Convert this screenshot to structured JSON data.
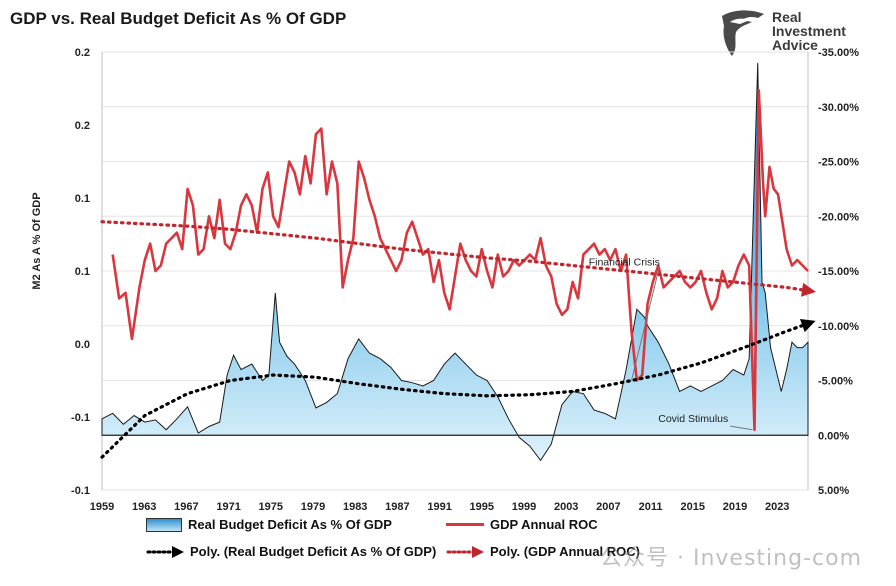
{
  "title": "GDP vs. Real Budget Deficit As % Of GDP",
  "brand": {
    "line1": "Real",
    "line2": "Investment",
    "line3": "Advice",
    "icon": "eagle-head-icon"
  },
  "watermark": "公众号 · Investing-com",
  "chart_data": {
    "type": "area",
    "ylabel": "M2 As A % Of GDP",
    "left_axis_ticks": [
      "0.2",
      "0.2",
      "0.1",
      "0.1",
      "0.0",
      "-0.1",
      "-0.1"
    ],
    "left_axis_values": [
      0.2,
      0.15,
      0.1,
      0.05,
      0.0,
      -0.05,
      -0.1
    ],
    "right_axis_ticks": [
      "-35.00%",
      "-30.00%",
      "-25.00%",
      "-20.00%",
      "-15.00%",
      "-10.00%",
      "-5.00%",
      "0.00%",
      "5.00%"
    ],
    "right_axis_values": [
      -35,
      -30,
      -25,
      -20,
      -15,
      -10,
      -5,
      0,
      5
    ],
    "right_axis_inverted": true,
    "x_ticks": [
      "1959",
      "1963",
      "1967",
      "1971",
      "1975",
      "1979",
      "1983",
      "1987",
      "1991",
      "1995",
      "1999",
      "2003",
      "2007",
      "2011",
      "2015",
      "2019",
      "2023"
    ],
    "xlim": [
      1959,
      2025
    ],
    "legend_position": "bottom",
    "grid": "horizontal",
    "series": [
      {
        "name": "Real Budget Deficit As % Of GDP",
        "kind": "area",
        "axis": "right",
        "color": "#3fa7dd",
        "x": [
          1959,
          1960,
          1961,
          1962,
          1963,
          1964,
          1965,
          1966,
          1967,
          1968,
          1969,
          1970,
          1970.7,
          1971.3,
          1972,
          1973,
          1974,
          1974.6,
          1975.2,
          1975.6,
          1976.3,
          1977,
          1978,
          1979,
          1980,
          1981,
          1982,
          1983,
          1984,
          1985,
          1986,
          1987,
          1988,
          1989,
          1990,
          1991,
          1992,
          1993,
          1994,
          1995,
          1996,
          1997,
          1998,
          1999,
          2000,
          2001,
          2002,
          2003,
          2004,
          2005,
          2006,
          2007,
          2008,
          2009,
          2009.7,
          2010,
          2011,
          2012,
          2013,
          2014,
          2015,
          2016,
          2017,
          2018,
          2019,
          2019.5,
          2020.0,
          2020.3,
          2020.7,
          2021,
          2021.5,
          2022,
          2022.5,
          2023,
          2023.5,
          2024,
          2024.5,
          2025
        ],
        "y": [
          -1.5,
          -2.0,
          -1.0,
          -1.8,
          -1.2,
          -1.4,
          -0.5,
          -1.5,
          -2.6,
          -0.2,
          -0.8,
          -1.2,
          -5.5,
          -7.3,
          -6.0,
          -6.5,
          -5.0,
          -5.5,
          -13.0,
          -8.5,
          -7.2,
          -6.5,
          -5.0,
          -2.5,
          -3.0,
          -3.8,
          -7.0,
          -8.8,
          -7.5,
          -7.0,
          -6.2,
          -5.0,
          -4.8,
          -4.5,
          -5.0,
          -6.5,
          -7.5,
          -6.5,
          -5.5,
          -5.0,
          -3.5,
          -1.5,
          0.2,
          1.0,
          2.3,
          0.8,
          -2.8,
          -4.0,
          -3.8,
          -2.3,
          -2.0,
          -1.5,
          -6.0,
          -11.5,
          -10.8,
          -10.0,
          -8.5,
          -6.5,
          -4.0,
          -4.5,
          -4.0,
          -4.5,
          -5.0,
          -6.0,
          -5.5,
          -7.0,
          -24.0,
          -34.0,
          -14.0,
          -13.0,
          -8.0,
          -6.0,
          -4.0,
          -6.0,
          -8.5,
          -8.0,
          -8.0,
          -8.5
        ]
      },
      {
        "name": "GDP Annual ROC",
        "kind": "line",
        "axis": "right",
        "color": "#d9363e",
        "x": [
          1960,
          1960.6,
          1961.2,
          1961.8,
          1962.5,
          1963,
          1963.5,
          1964,
          1964.5,
          1965,
          1965.5,
          1966,
          1966.5,
          1967,
          1967.5,
          1968,
          1968.5,
          1969,
          1969.5,
          1970,
          1970.5,
          1971,
          1971.5,
          1972,
          1972.5,
          1973,
          1973.5,
          1974,
          1974.5,
          1975,
          1975.5,
          1976,
          1976.5,
          1977,
          1977.5,
          1978,
          1978.5,
          1979,
          1979.5,
          1980,
          1980.5,
          1981,
          1981.5,
          1982,
          1982.5,
          1983,
          1983.5,
          1984,
          1984.5,
          1985,
          1985.5,
          1986,
          1986.5,
          1987,
          1987.5,
          1988,
          1988.5,
          1989,
          1989.5,
          1990,
          1990.5,
          1991,
          1991.5,
          1992,
          1992.5,
          1993,
          1993.5,
          1994,
          1994.5,
          1995,
          1995.5,
          1996,
          1996.5,
          1997,
          1997.5,
          1998,
          1998.5,
          1999,
          1999.5,
          2000,
          2000.5,
          2001,
          2001.5,
          2002,
          2002.5,
          2003,
          2003.5,
          2004,
          2004.5,
          2005,
          2005.5,
          2006,
          2006.5,
          2007,
          2007.5,
          2008,
          2008.5,
          2009,
          2009.5,
          2010,
          2010.5,
          2011,
          2011.5,
          2012,
          2012.5,
          2013,
          2013.5,
          2014,
          2014.5,
          2015,
          2015.5,
          2016,
          2016.5,
          2017,
          2017.5,
          2018,
          2018.5,
          2019,
          2019.5,
          2020,
          2020.4,
          2020.8,
          2021,
          2021.4,
          2021.8,
          2022.2,
          2022.6,
          2023,
          2023.5,
          2024,
          2024.5,
          2025
        ],
        "y": [
          -16.5,
          -12.5,
          -13.0,
          -8.8,
          -13.5,
          -16.0,
          -17.5,
          -15.0,
          -15.5,
          -17.5,
          -18.0,
          -18.5,
          -17.0,
          -22.5,
          -21.0,
          -16.5,
          -17.0,
          -20.0,
          -18.0,
          -21.5,
          -17.5,
          -17.0,
          -18.5,
          -21.0,
          -22.0,
          -21.0,
          -18.5,
          -22.5,
          -24.0,
          -20.0,
          -19.0,
          -22.0,
          -25.0,
          -24.0,
          -22.0,
          -25.5,
          -23.0,
          -27.5,
          -28.0,
          -22.0,
          -25.0,
          -23.0,
          -13.5,
          -16.0,
          -18.0,
          -25.0,
          -23.5,
          -21.5,
          -20.0,
          -18.0,
          -17.0,
          -16.0,
          -15.0,
          -16.0,
          -18.5,
          -19.5,
          -18.0,
          -16.5,
          -17.0,
          -14.0,
          -16.0,
          -13.0,
          -11.5,
          -14.5,
          -17.5,
          -16.0,
          -15.0,
          -14.5,
          -17.0,
          -15.0,
          -13.5,
          -16.5,
          -14.5,
          -15.0,
          -16.0,
          -15.5,
          -16.0,
          -16.5,
          -16.0,
          -18.0,
          -15.5,
          -14.5,
          -12.0,
          -11.0,
          -11.5,
          -14.0,
          -12.5,
          -16.5,
          -17.0,
          -17.5,
          -16.5,
          -17.0,
          -16.0,
          -17.0,
          -15.0,
          -16.5,
          -9.5,
          -5.0,
          -5.5,
          -12.0,
          -14.0,
          -15.5,
          -13.5,
          -14.0,
          -14.5,
          -15.0,
          -14.0,
          -13.5,
          -14.0,
          -15.0,
          -13.0,
          -11.5,
          -12.5,
          -15.0,
          -13.5,
          -14.0,
          -15.5,
          -16.5,
          -15.5,
          -0.5,
          -31.5,
          -23.0,
          -20.0,
          -24.5,
          -22.5,
          -22.0,
          -19.5,
          -17.0,
          -15.5,
          -16.0,
          -15.5,
          -15.0
        ]
      },
      {
        "name": "Poly. (Real Budget Deficit As % Of GDP)",
        "kind": "trend",
        "axis": "right",
        "color": "#000000",
        "x": [
          1959,
          1963,
          1967,
          1971,
          1975,
          1979,
          1983,
          1987,
          1991,
          1995,
          1999,
          2003,
          2007,
          2011,
          2015,
          2019,
          2023,
          2025
        ],
        "y": [
          2.0,
          -1.8,
          -3.8,
          -5.0,
          -5.5,
          -5.3,
          -4.7,
          -4.2,
          -3.8,
          -3.6,
          -3.7,
          -4.0,
          -4.7,
          -5.5,
          -6.6,
          -8.0,
          -9.5,
          -10.2
        ]
      },
      {
        "name": "Poly. (GDP Annual ROC)",
        "kind": "trend",
        "axis": "right",
        "color": "#c0262c",
        "x": [
          1959,
          1963,
          1967,
          1971,
          1975,
          1979,
          1983,
          1987,
          1991,
          1995,
          1999,
          2003,
          2007,
          2011,
          2015,
          2019,
          2023,
          2025
        ],
        "y": [
          -19.5,
          -19.3,
          -19.1,
          -18.8,
          -18.4,
          -18.0,
          -17.5,
          -17.0,
          -16.6,
          -16.2,
          -15.9,
          -15.5,
          -15.1,
          -14.7,
          -14.3,
          -13.9,
          -13.5,
          -13.2
        ]
      }
    ],
    "annotations": [
      {
        "text": "Financial Crisis",
        "x": 2008.5,
        "y": -5.0,
        "label_x": 2004.5,
        "label_y": -15.5
      },
      {
        "text": "Covid Stimulus",
        "x": 2019.8,
        "y": -0.5,
        "label_x": 2011,
        "label_y": -1.2
      }
    ]
  },
  "legend": [
    {
      "id": "deficit",
      "label": "Real Budget Deficit As % Of GDP"
    },
    {
      "id": "gdp",
      "label": "GDP Annual ROC"
    },
    {
      "id": "poly-deficit",
      "label": "Poly. (Real Budget Deficit As % Of GDP)"
    },
    {
      "id": "poly-gdp",
      "label": "Poly. (GDP Annual ROC)"
    }
  ]
}
